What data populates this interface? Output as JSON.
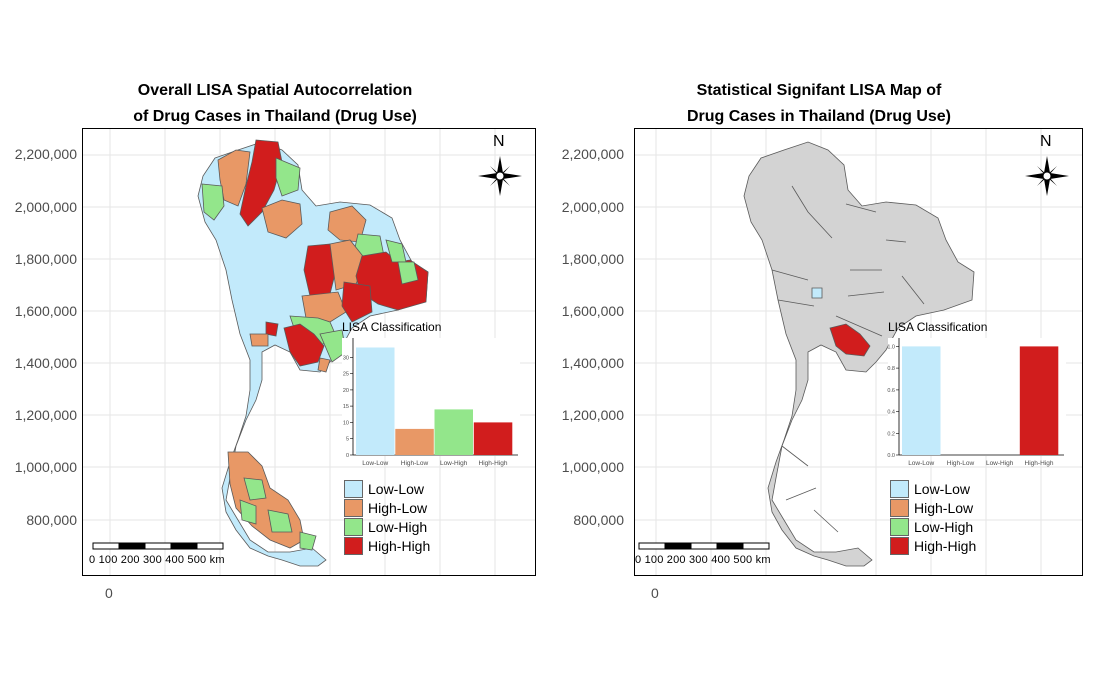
{
  "colors": {
    "low_low": "#c2eafb",
    "high_low": "#e89866",
    "low_high": "#93e68b",
    "high_high": "#d11d1d",
    "insignificant": "#d3d3d3",
    "border": "#5a5a5a"
  },
  "legend": {
    "entries": [
      "Low-Low",
      "High-Low",
      "Low-High",
      "High-High"
    ]
  },
  "left": {
    "title_line1": "Overall LISA Spatial Autocorrelation",
    "title_line2": "of Drug Cases in Thailand (Drug Use)",
    "x_zero": "0",
    "north": "N",
    "scalebar": "0   100  200  300  400  500  km",
    "inset_title": "LISA Classification"
  },
  "right": {
    "title_line1": "Statistical Signifant LISA Map of",
    "title_line2": "Drug Cases in Thailand (Drug Use)",
    "x_zero": "0",
    "north": "N",
    "scalebar": "0   100  200  300  400  500  km",
    "inset_title": "LISA Classification"
  },
  "y_ticks": [
    "2,200,000",
    "2,000,000",
    "1,800,000",
    "1,600,000",
    "1,400,000",
    "1,200,000",
    "1,000,000",
    "800,000"
  ],
  "chart_data": [
    {
      "type": "bar",
      "title": "LISA Classification",
      "categories": [
        "Low-Low",
        "High-Low",
        "Low-High",
        "High-High"
      ],
      "values": [
        33,
        8,
        14,
        10
      ],
      "ylim": [
        0,
        35
      ],
      "y_ticks": [
        "0",
        "5",
        "10",
        "15",
        "20",
        "25",
        "30"
      ]
    },
    {
      "type": "bar",
      "title": "LISA Classification",
      "categories": [
        "Low-Low",
        "High-Low",
        "Low-High",
        "High-High"
      ],
      "values": [
        1,
        0,
        0,
        1
      ],
      "ylim": [
        0,
        1.05
      ],
      "y_ticks": [
        "0.0",
        "0.2",
        "0.4",
        "0.6",
        "0.8",
        "1.0"
      ]
    }
  ]
}
